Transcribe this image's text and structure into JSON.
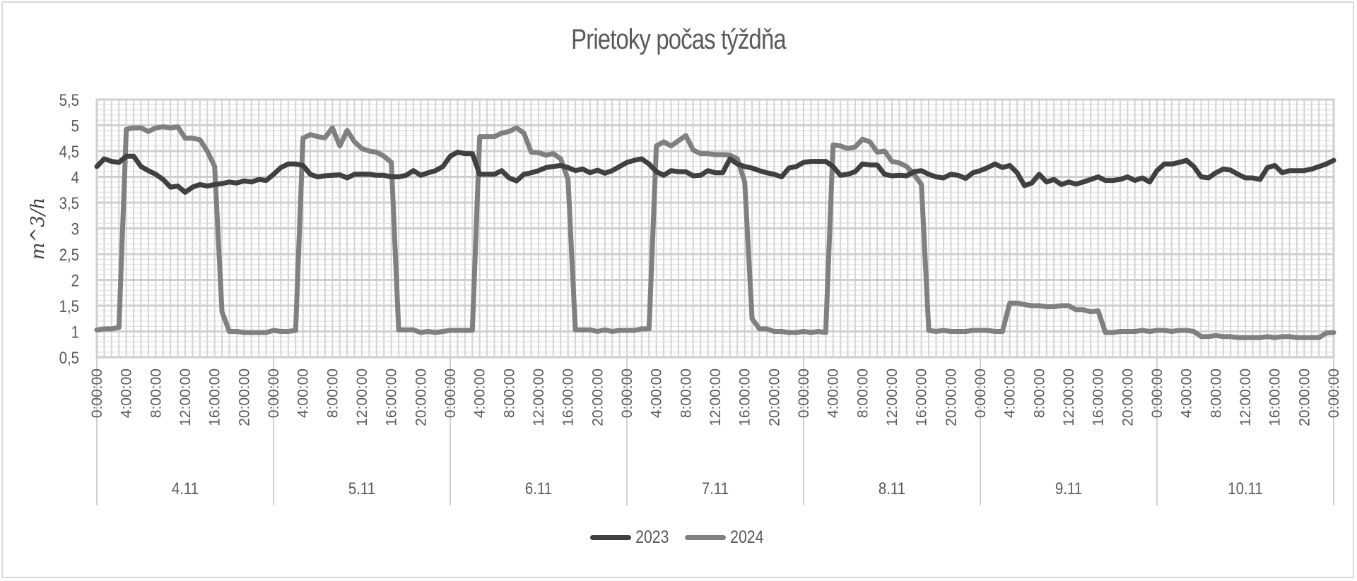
{
  "chart_data": {
    "type": "line",
    "title": "Prietoky počas týždňa",
    "xlabel": "",
    "ylabel": "m^3/h",
    "ylim": [
      0.5,
      5.5
    ],
    "y_ticks": [
      "0,5",
      "1",
      "1,5",
      "2",
      "2,5",
      "3",
      "3,5",
      "4",
      "4,5",
      "5",
      "5,5"
    ],
    "y_tick_values": [
      0.5,
      1,
      1.5,
      2,
      2.5,
      3,
      3.5,
      4,
      4.5,
      5,
      5.5
    ],
    "grid": true,
    "legend_position": "bottom",
    "x_hour_tick_labels": [
      "0:00:00",
      "4:00:00",
      "8:00:00",
      "12:00:00",
      "16:00:00",
      "20:00:00"
    ],
    "x_final_tick_label": "0:00:00",
    "days": [
      "4.11",
      "5.11",
      "6.11",
      "7.11",
      "8.11",
      "9.11",
      "10.11"
    ],
    "x_resolution": "hourly",
    "series": [
      {
        "name": "2023",
        "color": "#404040",
        "values": [
          4.2,
          4.35,
          4.3,
          4.28,
          4.4,
          4.4,
          4.2,
          4.12,
          4.05,
          3.95,
          3.8,
          3.82,
          3.7,
          3.8,
          3.85,
          3.82,
          3.85,
          3.87,
          3.9,
          3.88,
          3.92,
          3.9,
          3.95,
          3.93,
          4.05,
          4.18,
          4.25,
          4.25,
          4.22,
          4.05,
          4.0,
          4.02,
          4.03,
          4.04,
          3.98,
          4.05,
          4.05,
          4.05,
          4.03,
          4.03,
          4.0,
          4.0,
          4.03,
          4.12,
          4.03,
          4.08,
          4.12,
          4.2,
          4.4,
          4.48,
          4.45,
          4.45,
          4.05,
          4.05,
          4.05,
          4.12,
          3.98,
          3.92,
          4.05,
          4.08,
          4.12,
          4.18,
          4.2,
          4.22,
          4.18,
          4.12,
          4.15,
          4.08,
          4.13,
          4.07,
          4.12,
          4.2,
          4.28,
          4.32,
          4.35,
          4.25,
          4.1,
          4.03,
          4.12,
          4.1,
          4.1,
          4.02,
          4.03,
          4.12,
          4.08,
          4.08,
          4.35,
          4.25,
          4.2,
          4.17,
          4.12,
          4.08,
          4.05,
          4.0,
          4.17,
          4.2,
          4.28,
          4.3,
          4.3,
          4.3,
          4.2,
          4.03,
          4.05,
          4.1,
          4.25,
          4.23,
          4.23,
          4.05,
          4.02,
          4.03,
          4.02,
          4.1,
          4.12,
          4.05,
          4.0,
          3.98,
          4.05,
          4.03,
          3.97,
          4.08,
          4.12,
          4.18,
          4.25,
          4.18,
          4.22,
          4.08,
          3.83,
          3.88,
          4.05,
          3.9,
          3.95,
          3.85,
          3.9,
          3.86,
          3.9,
          3.95,
          4.0,
          3.93,
          3.93,
          3.95,
          4.0,
          3.93,
          3.98,
          3.9,
          4.12,
          4.25,
          4.25,
          4.28,
          4.32,
          4.2,
          4.0,
          3.98,
          4.08,
          4.15,
          4.13,
          4.05,
          3.98,
          3.98,
          3.95,
          4.18,
          4.22,
          4.08,
          4.12,
          4.12,
          4.12,
          4.15,
          4.2,
          4.25,
          4.32
        ]
      },
      {
        "name": "2024",
        "color": "#808080",
        "values": [
          1.03,
          1.05,
          1.05,
          1.08,
          4.92,
          4.95,
          4.95,
          4.88,
          4.95,
          4.97,
          4.95,
          4.97,
          4.75,
          4.75,
          4.72,
          4.5,
          4.2,
          1.38,
          1.0,
          1.0,
          0.98,
          0.98,
          0.98,
          0.98,
          1.02,
          1.0,
          1.0,
          1.02,
          4.75,
          4.82,
          4.78,
          4.76,
          4.95,
          4.6,
          4.9,
          4.68,
          4.55,
          4.5,
          4.48,
          4.4,
          4.28,
          1.03,
          1.03,
          1.03,
          0.98,
          1.0,
          0.98,
          1.0,
          1.02,
          1.02,
          1.02,
          1.02,
          4.78,
          4.78,
          4.78,
          4.85,
          4.88,
          4.95,
          4.85,
          4.48,
          4.47,
          4.42,
          4.45,
          4.35,
          3.95,
          1.03,
          1.03,
          1.03,
          1.0,
          1.03,
          1.0,
          1.02,
          1.02,
          1.02,
          1.05,
          1.05,
          4.6,
          4.68,
          4.6,
          4.7,
          4.8,
          4.52,
          4.45,
          4.45,
          4.43,
          4.43,
          4.42,
          4.35,
          3.9,
          1.25,
          1.05,
          1.05,
          1.0,
          1.0,
          0.98,
          0.98,
          1.0,
          0.98,
          1.0,
          0.98,
          4.62,
          4.6,
          4.55,
          4.58,
          4.73,
          4.68,
          4.48,
          4.5,
          4.3,
          4.27,
          4.2,
          4.05,
          3.85,
          1.02,
          1.0,
          1.02,
          1.0,
          1.0,
          1.0,
          1.02,
          1.02,
          1.02,
          1.0,
          1.0,
          1.55,
          1.55,
          1.52,
          1.5,
          1.5,
          1.48,
          1.48,
          1.5,
          1.5,
          1.42,
          1.42,
          1.38,
          1.4,
          0.98,
          0.98,
          1.0,
          1.0,
          1.0,
          1.02,
          1.0,
          1.02,
          1.02,
          1.0,
          1.02,
          1.02,
          1.0,
          0.9,
          0.9,
          0.92,
          0.9,
          0.9,
          0.88,
          0.88,
          0.88,
          0.88,
          0.9,
          0.88,
          0.9,
          0.9,
          0.88,
          0.88,
          0.88,
          0.88,
          0.97,
          0.98
        ]
      }
    ]
  },
  "legend": {
    "items": [
      {
        "label": "2023",
        "color": "#404040"
      },
      {
        "label": "2024",
        "color": "#808080"
      }
    ]
  }
}
